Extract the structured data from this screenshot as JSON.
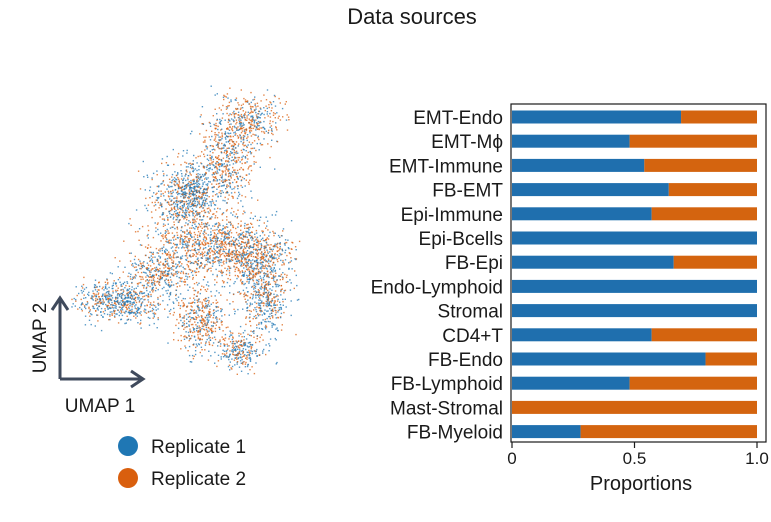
{
  "title": "Data sources",
  "umap": {
    "xlabel": "UMAP 1",
    "ylabel": "UMAP 2",
    "legend": [
      {
        "label": "Replicate 1",
        "color": "#1f77b4"
      },
      {
        "label": "Replicate 2",
        "color": "#d95f0e"
      }
    ]
  },
  "chart_data": [
    {
      "type": "scatter",
      "description_key": "umap",
      "xlabel": "UMAP 1",
      "ylabel": "UMAP 2",
      "series": [
        {
          "name": "Replicate 1",
          "color": "#1f77b4"
        },
        {
          "name": "Replicate 2",
          "color": "#d95f0e"
        }
      ],
      "legend": "bottom"
    },
    {
      "type": "bar",
      "orientation": "horizontal",
      "stacked": true,
      "categories": [
        "EMT-Endo",
        "EMT-Mϕ",
        "EMT-Immune",
        "FB-EMT",
        "Epi-Immune",
        "Epi-Bcells",
        "FB-Epi",
        "Endo-Lymphoid",
        "Stromal",
        "CD4+T",
        "FB-Endo",
        "FB-Lymphoid",
        "Mast-Stromal",
        "FB-Myeloid"
      ],
      "series": [
        {
          "name": "Replicate 1",
          "color": "#1f6fae",
          "values": [
            0.69,
            0.48,
            0.54,
            0.64,
            0.57,
            1.0,
            0.66,
            1.0,
            1.0,
            0.57,
            0.79,
            0.48,
            0.0,
            0.28
          ]
        },
        {
          "name": "Replicate 2",
          "color": "#d4640f",
          "values": [
            0.31,
            0.52,
            0.46,
            0.36,
            0.43,
            0.0,
            0.34,
            0.0,
            0.0,
            0.43,
            0.21,
            0.52,
            1.0,
            0.72
          ]
        }
      ],
      "xlabel": "Proportions",
      "xlim": [
        0,
        1.0
      ],
      "xticks": [
        "0",
        "0.5",
        "1.0"
      ]
    }
  ]
}
